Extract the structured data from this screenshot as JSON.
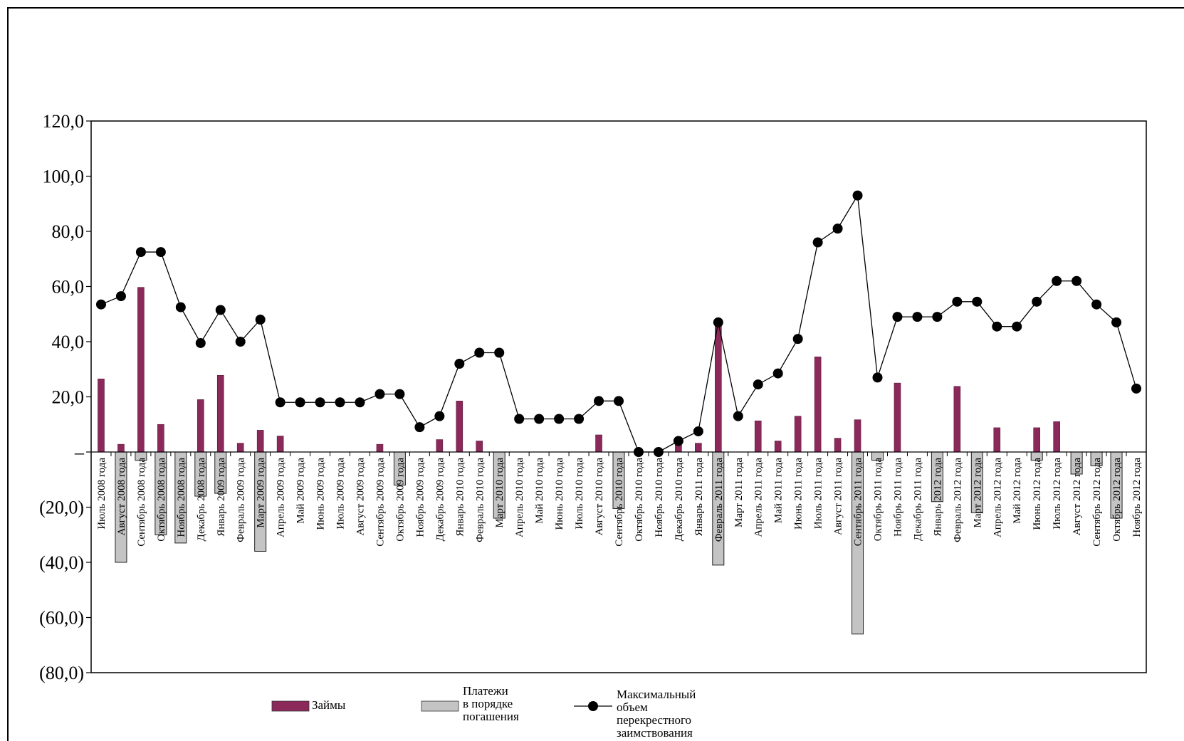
{
  "chart_data": {
    "type": "bar",
    "title": "",
    "xlabel": "",
    "ylabel": "",
    "ylim": [
      -80,
      120
    ],
    "yticks": [
      {
        "value": 120,
        "label": "120,0"
      },
      {
        "value": 100,
        "label": "100,0"
      },
      {
        "value": 80,
        "label": "80,0"
      },
      {
        "value": 60,
        "label": "60,0"
      },
      {
        "value": 40,
        "label": "40,0"
      },
      {
        "value": 20,
        "label": "20,0"
      },
      {
        "value": 0,
        "label": "–"
      },
      {
        "value": -20,
        "label": "(20,0)"
      },
      {
        "value": -40,
        "label": "(40,0)"
      },
      {
        "value": -60,
        "label": "(60,0)"
      },
      {
        "value": -80,
        "label": "(80,0)"
      }
    ],
    "categories": [
      "Июль 2008 года",
      "Август 2008 года",
      "Сентябрь 2008 года",
      "Октябрь 2008 года",
      "Ноябрь 2008 года",
      "Декабрь 2008 года",
      "Январь 2009 года",
      "Февраль 2009 года",
      "Март 2009 года",
      "Апрель 2009 года",
      "Май 2009 года",
      "Июнь 2009 года",
      "Июль 2009 года",
      "Август 2009 года",
      "Сентябрь 2009 года",
      "Октябрь 2009 года",
      "Ноябрь 2009 года",
      "Декабрь 2009 года",
      "Январь 2010 года",
      "Февраль 2010 года",
      "Март 2010 года",
      "Апрель 2010 года",
      "Май 2010 года",
      "Июнь 2010 года",
      "Июль 2010 года",
      "Август 2010 года",
      "Сентябрь 2010 года",
      "Октябрь 2010 года",
      "Ноябрь 2010 года",
      "Декабрь 2010 года",
      "Январь 2011 года",
      "Февраль 2011 года",
      "Март 2011 года",
      "Апрель 2011 года",
      "Май 2011 года",
      "Июнь 2011 года",
      "Июль 2011 года",
      "Август 2011 года",
      "Сентябрь 2011 года",
      "Октябрь 2011 года",
      "Ноябрь 2011 года",
      "Декабрь 2011 года",
      "Январь 2012 года",
      "Февраль 2012 года",
      "Март 2012 года",
      "Апрель 2012 года",
      "Май 2012 года",
      "Июнь 2012 года",
      "Июль 2012 года",
      "Август 2012 года",
      "Сентябрь 2012 года",
      "Октябрь 2012 года",
      "Ноябрь 2012 года"
    ],
    "series": [
      {
        "name": "Займы",
        "kind": "bar",
        "color": "#8b2a5a",
        "values": [
          26.5,
          2.8,
          59.7,
          10.0,
          0,
          19.0,
          27.8,
          3.2,
          7.9,
          5.8,
          0,
          0,
          0,
          0,
          2.8,
          0,
          0,
          4.5,
          18.5,
          4.0,
          0,
          0,
          0,
          0,
          0,
          6.2,
          0,
          0,
          0,
          2.5,
          3.2,
          46.5,
          0,
          11.3,
          4.0,
          13.0,
          34.5,
          5.0,
          11.7,
          0,
          25.0,
          0,
          0,
          23.8,
          0,
          8.8,
          0,
          8.8,
          11.0,
          0,
          0,
          0,
          0
        ]
      },
      {
        "name": "Платежи в порядке погашения",
        "kind": "bar",
        "color": "#c4c4c4",
        "values": [
          0,
          -40.0,
          -3.0,
          -30.0,
          -33.0,
          -16.0,
          -15.0,
          0,
          -36.0,
          0,
          0,
          0,
          0,
          0,
          0,
          -12.0,
          0,
          0,
          0,
          0,
          -24.0,
          0,
          0,
          0,
          0,
          0,
          -20.5,
          0,
          0,
          0,
          0,
          -41.0,
          0,
          0,
          0,
          0,
          0,
          0,
          -66.0,
          -3.0,
          0,
          0,
          -18.0,
          0,
          -22.0,
          0,
          0,
          -3.0,
          0,
          -8.0,
          -5.0,
          -24.0,
          0
        ]
      },
      {
        "name": "Максимальный объем перекрестного заимствования",
        "kind": "line",
        "color": "#000000",
        "values": [
          53.5,
          56.5,
          72.5,
          72.5,
          52.5,
          39.5,
          51.5,
          40.0,
          48.0,
          18.0,
          18.0,
          18.0,
          18.0,
          18.0,
          21.0,
          21.0,
          9.0,
          13.0,
          32.0,
          36.0,
          36.0,
          12.0,
          12.0,
          12.0,
          12.0,
          18.5,
          18.5,
          0,
          0,
          4.0,
          7.5,
          47.0,
          13.0,
          24.5,
          28.5,
          41.0,
          76.0,
          81.0,
          93.0,
          27.0,
          49.0,
          49.0,
          49.0,
          54.5,
          54.5,
          45.5,
          45.5,
          54.5,
          62.0,
          62.0,
          53.5,
          47.0,
          23.0
        ]
      }
    ],
    "legend": {
      "placement": "bottom",
      "items": [
        {
          "label": "Займы",
          "type": "bar",
          "color": "#8b2a5a"
        },
        {
          "label_lines": [
            "Платежи",
            "в порядке",
            "погашения"
          ],
          "type": "bar",
          "color": "#c4c4c4"
        },
        {
          "label_lines": [
            "Максимальный объем",
            "перекрестного заимствования"
          ],
          "type": "line-marker",
          "color": "#000000"
        }
      ]
    },
    "grid": false
  }
}
